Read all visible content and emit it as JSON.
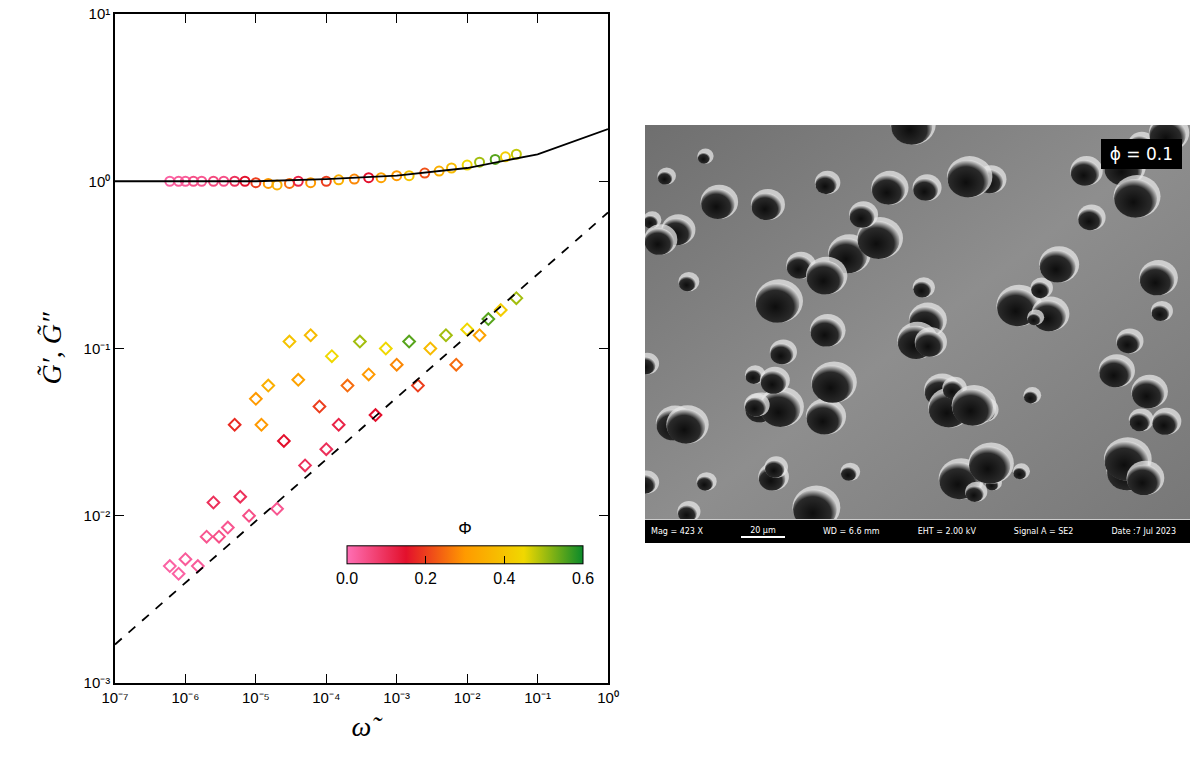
{
  "chart_data": {
    "type": "scatter",
    "x_label": "ω̃",
    "y_label": "G̃′, G̃″",
    "log": true,
    "grid": false,
    "xlim": [
      1e-07,
      1
    ],
    "ylim": [
      0.001,
      10
    ],
    "xticks": [
      {
        "value": 1e-07,
        "label": "10⁻⁷"
      },
      {
        "value": 1e-06,
        "label": "10⁻⁶"
      },
      {
        "value": 1e-05,
        "label": "10⁻⁵"
      },
      {
        "value": 0.0001,
        "label": "10⁻⁴"
      },
      {
        "value": 0.001,
        "label": "10⁻³"
      },
      {
        "value": 0.01,
        "label": "10⁻²"
      },
      {
        "value": 0.1,
        "label": "10⁻¹"
      },
      {
        "value": 1,
        "label": "10⁰"
      }
    ],
    "yticks": [
      {
        "value": 0.001,
        "label": "10⁻³"
      },
      {
        "value": 0.01,
        "label": "10⁻²"
      },
      {
        "value": 0.1,
        "label": "10⁻¹"
      },
      {
        "value": 1,
        "label": "10⁰"
      },
      {
        "value": 10,
        "label": "10¹"
      }
    ],
    "colorbar": {
      "title": "Φ",
      "range": [
        0,
        0.6
      ],
      "ticks": [
        {
          "value": 0,
          "label": "0.0"
        },
        {
          "value": 0.2,
          "label": "0.2"
        },
        {
          "value": 0.4,
          "label": "0.4"
        },
        {
          "value": 0.6,
          "label": "0.6"
        }
      ],
      "colors": [
        "#ff6fb5",
        "#e3102c",
        "#ff9a00",
        "#f0d800",
        "#0a8a2a"
      ]
    },
    "series": [
      {
        "type": "scatter",
        "marker": "circle-open",
        "x": [
          6e-07,
          8e-07,
          1e-06,
          1.3e-06,
          1.7e-06,
          2.5e-06,
          3.5e-06,
          5e-06,
          7e-06,
          1e-05,
          1.5e-05,
          2e-05,
          3e-05,
          4e-05,
          6e-05,
          0.0001,
          0.00015,
          0.00025,
          0.0004,
          0.0006,
          0.001,
          0.0015,
          0.0025,
          0.004,
          0.006,
          0.01,
          0.015,
          0.025,
          0.035,
          0.05
        ],
        "values": [
          1.0,
          1.0,
          1.0,
          1.0,
          1.0,
          1.0,
          1.0,
          1.0,
          1.0,
          0.98,
          0.97,
          0.95,
          0.97,
          1.0,
          0.98,
          1.0,
          1.02,
          1.03,
          1.05,
          1.05,
          1.08,
          1.08,
          1.12,
          1.15,
          1.2,
          1.25,
          1.3,
          1.35,
          1.4,
          1.45
        ],
        "phi": [
          0.02,
          0.03,
          0.03,
          0.05,
          0.04,
          0.06,
          0.05,
          0.1,
          0.15,
          0.2,
          0.3,
          0.35,
          0.25,
          0.12,
          0.3,
          0.2,
          0.35,
          0.28,
          0.15,
          0.32,
          0.3,
          0.4,
          0.22,
          0.35,
          0.38,
          0.45,
          0.5,
          0.55,
          0.42,
          0.48
        ]
      },
      {
        "type": "scatter",
        "marker": "diamond-open",
        "x": [
          6e-07,
          8e-07,
          1e-06,
          1.5e-06,
          2e-06,
          2.5e-06,
          3e-06,
          4e-06,
          5e-06,
          6e-06,
          8e-06,
          1e-05,
          1.2e-05,
          1.5e-05,
          2e-05,
          2.5e-05,
          3e-05,
          4e-05,
          5e-05,
          6e-05,
          8e-05,
          0.0001,
          0.00012,
          0.00015,
          0.0002,
          0.0003,
          0.0004,
          0.0005,
          0.0007,
          0.001,
          0.0015,
          0.002,
          0.003,
          0.005,
          0.007,
          0.01,
          0.015,
          0.02,
          0.03,
          0.05
        ],
        "values": [
          0.005,
          0.0045,
          0.0055,
          0.005,
          0.0075,
          0.012,
          0.0075,
          0.0085,
          0.035,
          0.013,
          0.01,
          0.05,
          0.035,
          0.06,
          0.011,
          0.028,
          0.11,
          0.065,
          0.02,
          0.12,
          0.045,
          0.025,
          0.09,
          0.035,
          0.06,
          0.11,
          0.07,
          0.04,
          0.1,
          0.08,
          0.11,
          0.06,
          0.1,
          0.12,
          0.08,
          0.13,
          0.12,
          0.15,
          0.17,
          0.2
        ],
        "phi": [
          0.02,
          0.02,
          0.03,
          0.03,
          0.04,
          0.1,
          0.05,
          0.04,
          0.18,
          0.1,
          0.05,
          0.3,
          0.3,
          0.35,
          0.04,
          0.15,
          0.4,
          0.32,
          0.1,
          0.38,
          0.2,
          0.1,
          0.45,
          0.12,
          0.25,
          0.5,
          0.3,
          0.15,
          0.45,
          0.28,
          0.55,
          0.2,
          0.38,
          0.5,
          0.25,
          0.45,
          0.32,
          0.55,
          0.42,
          0.5
        ]
      },
      {
        "type": "line",
        "line_style": "solid",
        "color": "#000000",
        "x": [
          1e-07,
          1e-06,
          1e-05,
          0.0001,
          0.001,
          0.01,
          0.1,
          1
        ],
        "values": [
          1.0,
          1.0,
          1.0,
          1.03,
          1.08,
          1.2,
          1.45,
          2.05
        ]
      },
      {
        "type": "line",
        "line_style": "dash",
        "color": "#000000",
        "x": [
          1e-07,
          1
        ],
        "values": [
          0.0017,
          0.65
        ]
      }
    ]
  },
  "image_panel": {
    "label": "ϕ = 0.1",
    "info_bar": [
      "Mag = 423 X",
      "20 µm",
      "WD = 6.6 mm",
      "EHT = 2.00 kV",
      "Signal A = SE2",
      "Date :7 Jul 2023"
    ]
  }
}
